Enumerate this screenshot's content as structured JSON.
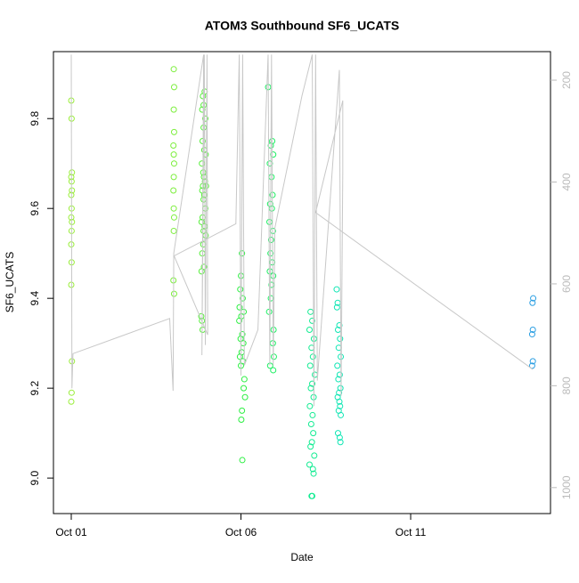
{
  "chart_data": {
    "type": "scatter",
    "title": "ATOM3 Southbound SF6_UCATS",
    "x_label": "Date",
    "y_label": "SF6_UCATS",
    "xlim": [
      0.475,
      15.12
    ],
    "xticks": [
      {
        "value": 1,
        "label": "Oct 01"
      },
      {
        "value": 6,
        "label": "Oct 06"
      },
      {
        "value": 11,
        "label": "Oct 11"
      }
    ],
    "ylim": [
      8.921,
      9.949
    ],
    "yticks": [
      {
        "value": 9,
        "label": "9.0"
      },
      9.2,
      9.4,
      9.6,
      9.8
    ],
    "y2lim": [
      1051,
      144
    ],
    "y2ticks": [
      200,
      400,
      600,
      800,
      1000
    ],
    "y2_color": "#bbbbbb",
    "series": [
      {
        "color": "#9aee3a",
        "x": [
          1.0,
          1.01,
          1.02,
          1.0,
          1.01,
          1.02,
          1.0,
          1.01,
          1.0,
          1.02,
          1.01,
          1.0,
          1.01,
          1.0,
          1.02,
          1.01,
          1.0
        ],
        "values": [
          9.84,
          9.8,
          9.68,
          9.67,
          9.66,
          9.64,
          9.63,
          9.6,
          9.58,
          9.57,
          9.55,
          9.52,
          9.48,
          9.43,
          9.26,
          9.19,
          9.17
        ]
      },
      {
        "color": "#7cee3c",
        "x": [
          4.02,
          4.03,
          4.02,
          4.03,
          4.01,
          4.02,
          4.03,
          4.02,
          4.01,
          4.02,
          4.03,
          4.02,
          4.01,
          4.03
        ],
        "values": [
          9.91,
          9.87,
          9.82,
          9.77,
          9.74,
          9.72,
          9.7,
          9.67,
          9.64,
          9.6,
          9.58,
          9.55,
          9.44,
          9.41
        ]
      },
      {
        "color": "#56ef3a",
        "x": [
          4.93,
          4.88,
          4.9,
          4.86,
          4.95,
          4.9,
          4.87,
          4.92,
          4.96,
          4.85,
          4.89,
          4.91,
          4.94,
          4.88,
          4.97,
          4.86,
          4.92,
          4.9,
          4.95,
          4.87,
          4.84,
          4.93,
          4.9,
          4.96,
          4.89,
          4.86,
          4.91,
          4.84,
          4.83,
          4.85,
          4.87
        ],
        "values": [
          9.86,
          9.85,
          9.83,
          9.82,
          9.8,
          9.78,
          9.75,
          9.73,
          9.72,
          9.7,
          9.68,
          9.67,
          9.66,
          9.65,
          9.65,
          9.64,
          9.63,
          9.62,
          9.6,
          9.58,
          9.57,
          9.56,
          9.55,
          9.54,
          9.52,
          9.5,
          9.47,
          9.46,
          9.36,
          9.35,
          9.33
        ]
      },
      {
        "color": "#2cef42",
        "x": [
          6.03,
          6.0,
          5.98,
          6.05,
          5.96,
          6.08,
          6.01,
          5.95,
          6.04,
          5.99,
          6.07,
          6.02,
          5.97,
          6.06,
          6.0,
          6.1,
          6.08,
          6.12,
          6.03,
          6.01,
          6.04
        ],
        "values": [
          9.5,
          9.45,
          9.42,
          9.4,
          9.38,
          9.37,
          9.36,
          9.35,
          9.32,
          9.31,
          9.3,
          9.28,
          9.27,
          9.26,
          9.25,
          9.22,
          9.2,
          9.18,
          9.15,
          9.13,
          9.04
        ]
      },
      {
        "color": "#1cef62",
        "x": [
          6.8,
          6.92,
          6.88,
          6.95,
          6.85,
          6.9,
          6.93,
          6.86,
          6.91,
          6.84,
          6.94,
          6.89,
          6.87,
          6.92,
          6.85,
          6.95,
          6.9,
          6.88,
          6.83,
          6.96,
          6.94,
          6.97,
          6.86,
          6.95
        ],
        "values": [
          9.87,
          9.75,
          9.74,
          9.72,
          9.7,
          9.67,
          9.63,
          9.61,
          9.6,
          9.57,
          9.55,
          9.53,
          9.5,
          9.48,
          9.46,
          9.45,
          9.43,
          9.4,
          9.37,
          9.33,
          9.3,
          9.27,
          9.25,
          9.24
        ]
      },
      {
        "color": "#12ec92",
        "x": [
          8.05,
          8.1,
          8.02,
          8.15,
          8.08,
          8.12,
          8.04,
          8.18,
          8.1,
          8.06,
          8.14,
          8.03,
          8.11,
          8.07,
          8.13,
          8.09,
          8.05,
          8.16,
          8.02,
          8.12,
          8.14,
          8.08,
          8.1
        ],
        "values": [
          9.37,
          9.35,
          9.33,
          9.31,
          9.29,
          9.27,
          9.25,
          9.23,
          9.21,
          9.2,
          9.18,
          9.16,
          9.14,
          9.12,
          9.1,
          9.08,
          9.07,
          9.05,
          9.03,
          9.02,
          9.01,
          8.96,
          8.96
        ]
      },
      {
        "color": "#10e6b4",
        "x": [
          8.82,
          8.85,
          8.83,
          8.9,
          8.86,
          8.92,
          8.88,
          8.94,
          8.84,
          8.91,
          8.87,
          8.93,
          8.89,
          8.85,
          8.9,
          8.92,
          8.88,
          8.94,
          8.86,
          8.91,
          8.93
        ],
        "values": [
          9.42,
          9.39,
          9.38,
          9.34,
          9.33,
          9.31,
          9.29,
          9.27,
          9.25,
          9.23,
          9.22,
          9.2,
          9.19,
          9.18,
          9.17,
          9.16,
          9.15,
          9.14,
          9.1,
          9.09,
          9.08
        ]
      },
      {
        "color": "#2a9ee2",
        "x": [
          14.61,
          14.59,
          14.6,
          14.58,
          14.6,
          14.58
        ],
        "values": [
          9.4,
          9.39,
          9.33,
          9.32,
          9.26,
          9.25
        ]
      },
      {
        "type": "line",
        "axis": "y2",
        "color": "#c8c8c8",
        "x": [
          1.0,
          1.02,
          1.05,
          3.9,
          4.0,
          4.02,
          4.9,
          4.85,
          4.92,
          4.95,
          5.0,
          5.02,
          4.03,
          5.85,
          5.95,
          6.0,
          6.05,
          6.1,
          6.5,
          6.8,
          6.85,
          6.9,
          6.95,
          7.0,
          7.8,
          8.1,
          8.15,
          8.2,
          8.25,
          8.9,
          8.95,
          9.0,
          9.0,
          8.2,
          14.6
        ],
        "values": [
          150,
          805,
          737,
          668,
          810,
          540,
          150,
          740,
          150,
          720,
          150,
          700,
          545,
          482,
          150,
          780,
          150,
          760,
          690,
          150,
          760,
          150,
          760,
          490,
          230,
          150,
          840,
          150,
          790,
          180,
          820,
          380,
          240,
          460,
          768
        ]
      }
    ]
  }
}
